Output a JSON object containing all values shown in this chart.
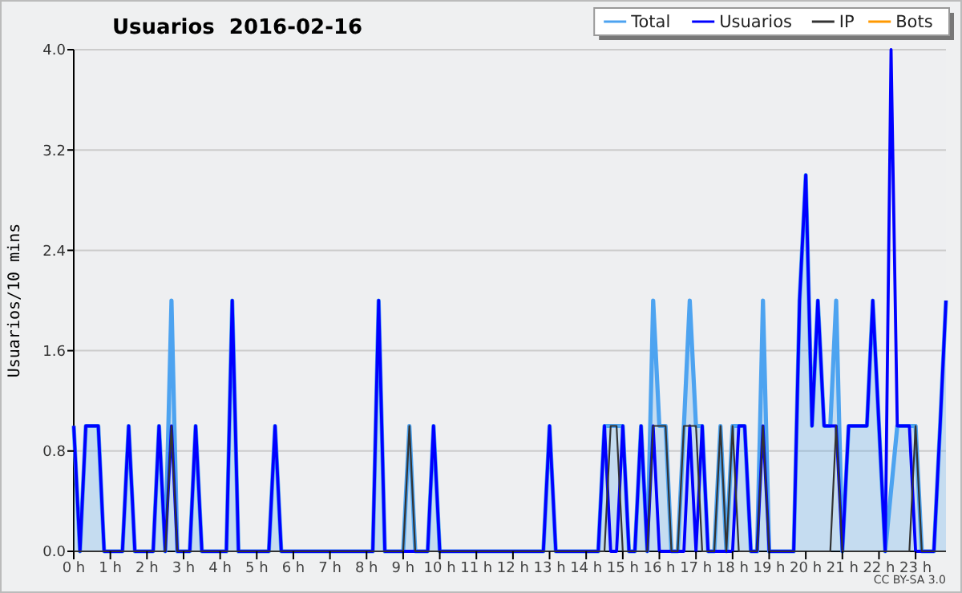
{
  "chart_data": {
    "type": "line",
    "title": "Usuarios  2016-02-16",
    "ylabel": "Usuarios/10 mins",
    "annotations": [
      "CC BY-SA 3.0"
    ],
    "xlim": [
      0,
      23.83
    ],
    "ylim": [
      0,
      4
    ],
    "xticks": [
      {
        "value": 0,
        "label": "0 h"
      },
      {
        "value": 1,
        "label": "1 h"
      },
      {
        "value": 2,
        "label": "2 h"
      },
      {
        "value": 3,
        "label": "3 h"
      },
      {
        "value": 4,
        "label": "4 h"
      },
      {
        "value": 5,
        "label": "5 h"
      },
      {
        "value": 6,
        "label": "6 h"
      },
      {
        "value": 7,
        "label": "7 h"
      },
      {
        "value": 8,
        "label": "8 h"
      },
      {
        "value": 9,
        "label": "9 h"
      },
      {
        "value": 10,
        "label": "10 h"
      },
      {
        "value": 11,
        "label": "11 h"
      },
      {
        "value": 12,
        "label": "12 h"
      },
      {
        "value": 13,
        "label": "13 h"
      },
      {
        "value": 14,
        "label": "14 h"
      },
      {
        "value": 15,
        "label": "15 h"
      },
      {
        "value": 16,
        "label": "16 h"
      },
      {
        "value": 17,
        "label": "17 h"
      },
      {
        "value": 18,
        "label": "18 h"
      },
      {
        "value": 19,
        "label": "19 h"
      },
      {
        "value": 20,
        "label": "20 h"
      },
      {
        "value": 21,
        "label": "21 h"
      },
      {
        "value": 22,
        "label": "22 h"
      },
      {
        "value": 23,
        "label": "23 h"
      }
    ],
    "yticks": [
      {
        "value": 0,
        "label": "0.0"
      },
      0.8,
      1.6,
      2.4,
      3.2,
      {
        "value": 4,
        "label": "4.0"
      }
    ],
    "grid": "y",
    "legend": "top right",
    "marker": "none",
    "series": [
      {
        "name": "Total",
        "type": "area",
        "color": "#4da3f0",
        "x": [
          0,
          0.17,
          0.33,
          0.67,
          0.83,
          1.33,
          1.5,
          1.67,
          2.17,
          2.33,
          2.5,
          2.67,
          2.83,
          3.17,
          3.33,
          3.5,
          4.17,
          4.33,
          4.5,
          5.33,
          5.5,
          5.67,
          8.17,
          8.33,
          8.5,
          9,
          9.17,
          9.33,
          9.67,
          9.83,
          10,
          12.83,
          13,
          13.17,
          14.33,
          14.5,
          14.67,
          14.83,
          15,
          15.17,
          15.33,
          15.5,
          15.67,
          15.83,
          16,
          16.17,
          16.33,
          16.5,
          16.67,
          16.83,
          17,
          17.17,
          17.33,
          17.5,
          17.67,
          17.83,
          18,
          18.17,
          18.33,
          18.5,
          18.67,
          18.83,
          19,
          19.67,
          19.83,
          20,
          20.17,
          20.33,
          20.5,
          20.67,
          20.83,
          21,
          21.17,
          21.33,
          21.5,
          21.67,
          21.83,
          22,
          22.17,
          22.33,
          22.5,
          22.67,
          22.83,
          23,
          23.17,
          23.5,
          23.67,
          23.83
        ],
        "values": [
          1,
          0,
          1,
          1,
          0,
          0,
          1,
          0,
          0,
          1,
          0,
          2,
          0,
          0,
          1,
          0,
          0,
          2,
          0,
          0,
          1,
          0,
          0,
          2,
          0,
          0,
          1,
          0,
          0,
          1,
          0,
          0,
          1,
          0,
          0,
          1,
          1,
          1,
          1,
          0,
          0,
          1,
          0,
          2,
          1,
          1,
          0,
          0,
          1,
          2,
          1,
          1,
          0,
          0,
          1,
          0,
          1,
          1,
          1,
          0,
          0,
          2,
          0,
          0,
          2,
          3,
          1,
          2,
          1,
          1,
          2,
          0,
          1,
          1,
          1,
          1,
          2,
          1,
          0,
          null,
          1,
          1,
          1,
          1,
          0,
          0,
          1,
          2
        ]
      },
      {
        "name": "Usuarios",
        "color": "#0000ff",
        "x": [
          0,
          0.17,
          0.33,
          0.67,
          0.83,
          1.33,
          1.5,
          1.67,
          2.17,
          2.33,
          2.5,
          2.67,
          2.83,
          3.17,
          3.33,
          3.5,
          4.17,
          4.33,
          4.5,
          5.33,
          5.5,
          5.67,
          8.17,
          8.33,
          8.5,
          9.67,
          9.83,
          10,
          12.83,
          13,
          13.17,
          14.33,
          14.5,
          14.67,
          14.83,
          15,
          15.17,
          15.33,
          15.5,
          15.67,
          15.83,
          16,
          16.67,
          16.83,
          17,
          17.17,
          17.33,
          18,
          18.17,
          18.33,
          18.5,
          18.67,
          18.83,
          19,
          19.67,
          19.83,
          20,
          20.17,
          20.33,
          20.5,
          20.67,
          20.83,
          21,
          21.17,
          21.33,
          21.5,
          21.67,
          21.83,
          22,
          22.17,
          22.33,
          22.5,
          22.67,
          22.83,
          23,
          23.5,
          23.67,
          23.83
        ],
        "values": [
          1,
          0,
          1,
          1,
          0,
          0,
          1,
          0,
          0,
          1,
          0,
          1,
          0,
          0,
          1,
          0,
          0,
          2,
          0,
          0,
          1,
          0,
          0,
          2,
          0,
          0,
          1,
          0,
          0,
          1,
          0,
          0,
          1,
          0,
          0,
          1,
          0,
          0,
          1,
          0,
          1,
          0,
          0,
          1,
          0,
          1,
          0,
          0,
          1,
          1,
          0,
          0,
          1,
          0,
          0,
          2,
          3,
          1,
          2,
          1,
          1,
          1,
          0,
          1,
          1,
          1,
          1,
          2,
          1,
          0,
          4,
          1,
          1,
          1,
          0,
          0,
          1,
          2
        ]
      },
      {
        "name": "IP",
        "color": "#333333",
        "x": [
          0,
          2.5,
          2.67,
          2.83,
          9,
          9.17,
          9.33,
          14.5,
          14.67,
          14.83,
          15,
          15.67,
          15.83,
          16,
          16.17,
          16.33,
          16.5,
          16.67,
          16.83,
          17,
          17.17,
          17.5,
          17.67,
          17.83,
          18,
          18.17,
          18.67,
          18.83,
          19,
          20.67,
          20.83,
          21,
          22.83,
          23,
          23.17,
          23.83
        ],
        "values": [
          0,
          0,
          1,
          0,
          0,
          1,
          0,
          0,
          1,
          1,
          0,
          0,
          1,
          1,
          1,
          0,
          0,
          1,
          1,
          1,
          0,
          0,
          1,
          0,
          1,
          0,
          0,
          1,
          0,
          0,
          1,
          0,
          0,
          1,
          0,
          0
        ]
      },
      {
        "name": "Bots",
        "color": "#ff9900"
      }
    ]
  }
}
